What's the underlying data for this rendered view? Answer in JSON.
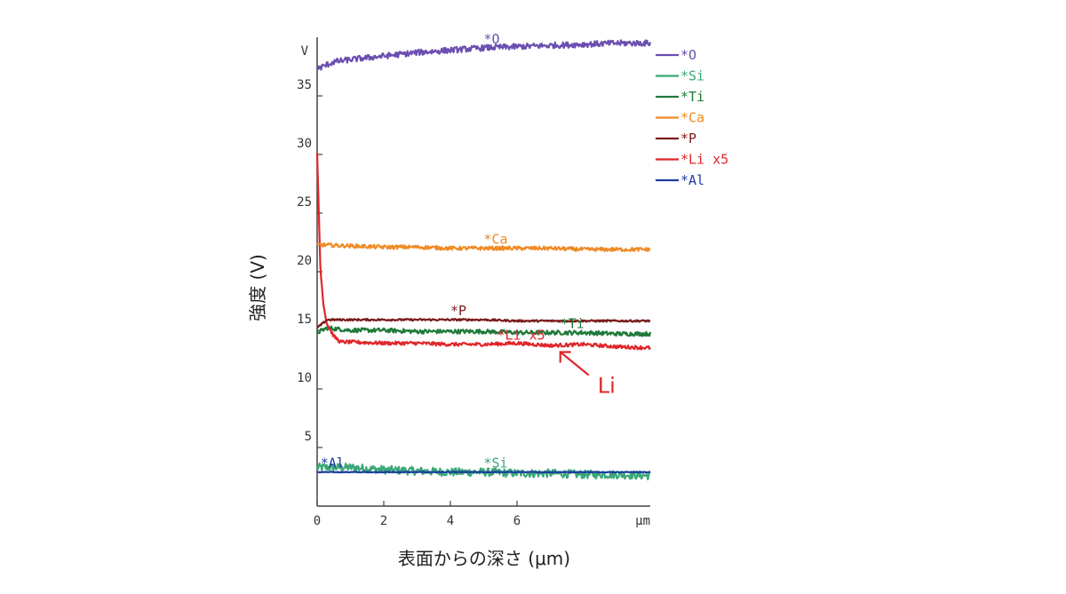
{
  "chart_data": {
    "type": "line",
    "xlabel": "表面からの深さ (μm)",
    "ylabel": "強度 (V)",
    "x_unit_label": "μm",
    "y_unit_label": "V",
    "xlim": [
      0,
      10
    ],
    "ylim": [
      0,
      40
    ],
    "x_ticks": [
      0,
      2,
      4,
      6
    ],
    "x_tick_labels": [
      "0",
      "2",
      "4",
      "6"
    ],
    "y_ticks": [
      5,
      10,
      15,
      20,
      25,
      30,
      35
    ],
    "y_tick_labels": [
      "5",
      "10",
      "15",
      "20",
      "25",
      "30",
      "35"
    ],
    "grid": false,
    "legend_position": "right",
    "series": [
      {
        "name": "*O",
        "color": "#6a4fb0",
        "x": [
          0,
          0.5,
          1,
          2,
          3,
          4,
          5,
          6,
          7,
          8,
          9,
          10
        ],
        "y": [
          37.3,
          37.9,
          38.1,
          38.4,
          38.7,
          38.9,
          39.1,
          39.2,
          39.3,
          39.4,
          39.5,
          39.5
        ],
        "noise": 0.25,
        "inline_label": "*O",
        "inline_label_x": 5.0
      },
      {
        "name": "*Si",
        "color": "#3aa878",
        "x": [
          0,
          1,
          2,
          3,
          4,
          5,
          6,
          7,
          8,
          9,
          10
        ],
        "y": [
          3.3,
          3.3,
          3.1,
          3.0,
          2.9,
          2.9,
          2.8,
          2.8,
          2.7,
          2.7,
          2.6
        ],
        "noise": 0.35,
        "inline_label": "*Si",
        "inline_label_x": 5.0
      },
      {
        "name": "*Ti",
        "color": "#1f7a3a",
        "x": [
          0,
          0.3,
          1,
          2,
          3,
          4,
          5,
          6,
          7,
          8,
          9,
          10
        ],
        "y": [
          14.8,
          15.2,
          15.0,
          15.0,
          14.9,
          14.9,
          14.9,
          14.8,
          14.8,
          14.8,
          14.7,
          14.7
        ],
        "noise": 0.18,
        "inline_label": "*Ti",
        "inline_label_x": 7.3
      },
      {
        "name": "*Ca",
        "color": "#f08a24",
        "x": [
          0,
          1,
          2,
          3,
          4,
          5,
          6,
          7,
          8,
          9,
          10
        ],
        "y": [
          22.3,
          22.2,
          22.1,
          22.1,
          22.0,
          22.0,
          22.0,
          22.0,
          21.9,
          21.9,
          21.9
        ],
        "noise": 0.16,
        "inline_label": "*Ca",
        "inline_label_x": 5.0
      },
      {
        "name": "*P",
        "color": "#7a1a1a",
        "x": [
          0,
          0.3,
          1,
          2,
          3,
          4,
          5,
          6,
          7,
          8,
          9,
          10
        ],
        "y": [
          15.2,
          15.9,
          15.9,
          15.9,
          15.9,
          15.9,
          15.9,
          15.8,
          15.8,
          15.8,
          15.8,
          15.8
        ],
        "noise": 0.08,
        "inline_label": "*P",
        "inline_label_x": 4.0
      },
      {
        "name": "*Li x5",
        "color": "#e0262a",
        "x": [
          0,
          0.05,
          0.1,
          0.2,
          0.3,
          0.5,
          0.7,
          1,
          2,
          3,
          4,
          5,
          6,
          7,
          8,
          9,
          10
        ],
        "y": [
          30.0,
          25.0,
          20.0,
          17.0,
          15.5,
          14.5,
          14.0,
          14.0,
          13.9,
          13.9,
          13.8,
          13.8,
          13.9,
          13.7,
          13.8,
          13.6,
          13.5
        ],
        "noise": 0.15,
        "inline_label": "*Li x5",
        "inline_label_x": 5.4
      },
      {
        "name": "*Al",
        "color": "#1b3d9c",
        "x": [
          0,
          1,
          2,
          3,
          4,
          5,
          6,
          7,
          8,
          9,
          10
        ],
        "y": [
          2.9,
          2.9,
          2.9,
          2.9,
          2.9,
          2.9,
          2.9,
          2.9,
          2.9,
          2.9,
          2.9
        ],
        "noise": 0.03,
        "inline_label": "*Al",
        "inline_label_x": 0.1
      }
    ],
    "annotations": [
      {
        "text": "Li",
        "color": "#e0262a",
        "target_x": 7.3,
        "target_y": 13.6
      }
    ]
  }
}
